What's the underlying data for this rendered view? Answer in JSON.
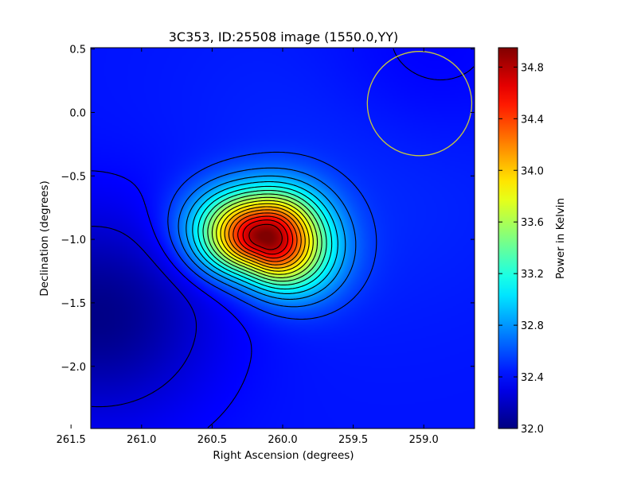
{
  "chart_data": {
    "type": "heatmap",
    "title": "3C353, ID:25508 image (1550.0,YY)",
    "xlabel": "Right Ascension (degrees)",
    "ylabel": "Declination (degrees)",
    "x_ticks": [
      "261.5",
      "261.0",
      "260.5",
      "260.0",
      "259.5",
      "259.0"
    ],
    "x_tick_values": [
      261.5,
      261.0,
      260.5,
      260.0,
      259.5,
      259.0
    ],
    "y_ticks": [
      "0.5",
      "0.0",
      "−0.5",
      "−1.0",
      "−1.5",
      "−2.0"
    ],
    "y_tick_values": [
      0.5,
      0.0,
      -0.5,
      -1.0,
      -1.5,
      -2.0
    ],
    "xlim": [
      261.36,
      258.64
    ],
    "ylim": [
      -2.49,
      0.51
    ],
    "colormap": "jet",
    "colorbar": {
      "label": "Power in Kelvin",
      "range": [
        32.0,
        34.95
      ],
      "ticks": [
        "32.0",
        "32.4",
        "32.8",
        "33.2",
        "33.6",
        "34.0",
        "34.4",
        "34.8"
      ],
      "tick_values": [
        32.0,
        32.4,
        32.8,
        33.2,
        33.6,
        34.0,
        34.4,
        34.8
      ]
    },
    "source": {
      "ra": 260.12,
      "dec": -0.98,
      "peak": 34.95
    },
    "background_min": {
      "ra": 261.3,
      "dec": -1.6,
      "value": 32.0
    },
    "contour_levels": [
      32.25,
      32.38,
      32.53,
      32.68,
      32.83,
      32.98,
      33.13,
      33.28,
      33.43,
      33.58,
      33.73,
      33.88,
      34.03,
      34.18,
      34.33,
      34.48,
      34.63,
      34.78
    ],
    "beam_circle": {
      "ra": 259.03,
      "dec": 0.07,
      "radius_deg": 0.37,
      "color": "#c8c83c"
    },
    "contour_color": "#000000"
  }
}
